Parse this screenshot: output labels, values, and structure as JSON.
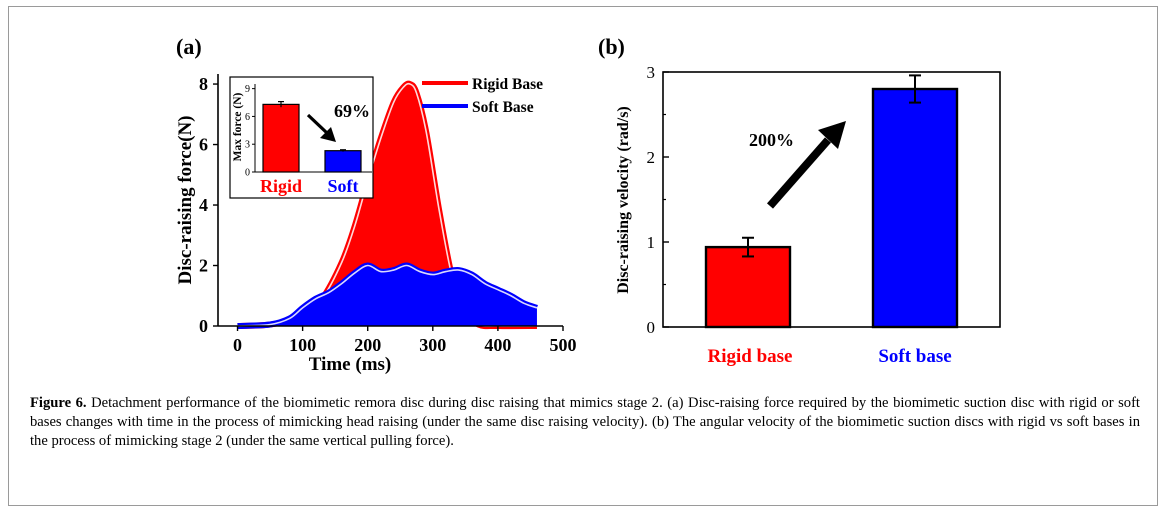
{
  "caption": {
    "label": "Figure 6.",
    "text": "Detachment performance of the biomimetic remora disc during disc raising that mimics stage 2. (a) Disc-raising force required by the biomimetic suction disc with rigid or soft bases changes with time in the process of mimicking head raising (under the same disc raising velocity). (b) The angular velocity of the biomimetic suction discs with rigid vs soft bases in the process of mimicking stage 2 (under the same vertical pulling force)."
  },
  "colors": {
    "rigid": "#ff0000",
    "soft": "#0000ff"
  },
  "chart_data": [
    {
      "panel": "(a)",
      "type": "area",
      "xlabel": "Time (ms)",
      "ylabel": "Disc-raising force(N)",
      "xlim": [
        -30,
        500
      ],
      "ylim": [
        0,
        8.2
      ],
      "xticks": [
        "0",
        "100",
        "200",
        "300",
        "400",
        "500"
      ],
      "yticks": [
        "0",
        "2",
        "4",
        "6",
        "8"
      ],
      "legend_position": "top-right",
      "series": [
        {
          "name": "Rigid Base",
          "color": "#ff0000",
          "x": [
            0,
            50,
            100,
            130,
            160,
            180,
            200,
            220,
            240,
            255,
            265,
            275,
            290,
            310,
            330,
            350,
            370,
            400,
            460
          ],
          "y": [
            0,
            0.05,
            0.3,
            0.9,
            2.1,
            3.3,
            4.8,
            6.2,
            7.4,
            7.9,
            8.0,
            7.7,
            6.4,
            3.8,
            1.6,
            0.5,
            0.05,
            0,
            0
          ]
        },
        {
          "name": "Soft Base",
          "color": "#0000ff",
          "x": [
            0,
            50,
            80,
            100,
            120,
            140,
            160,
            180,
            200,
            220,
            240,
            260,
            280,
            300,
            320,
            340,
            360,
            380,
            400,
            420,
            440,
            460
          ],
          "y": [
            0,
            0.05,
            0.25,
            0.6,
            0.9,
            1.1,
            1.4,
            1.75,
            2.0,
            1.8,
            1.85,
            2.0,
            1.8,
            1.7,
            1.8,
            1.85,
            1.7,
            1.4,
            1.2,
            1.0,
            0.75,
            0.6
          ]
        }
      ],
      "inset": {
        "type": "bar",
        "ylabel": "Max force (N)",
        "ylim": [
          0,
          9.5
        ],
        "yticks": [
          "0",
          "3",
          "6",
          "9"
        ],
        "categories": [
          "Rigid",
          "Soft"
        ],
        "values": [
          7.3,
          2.3
        ],
        "errors": [
          0.3,
          0.1
        ],
        "annotation": "69%"
      }
    },
    {
      "panel": "(b)",
      "type": "bar",
      "ylabel": "Disc-raising velocity (rad/s)",
      "ylim": [
        0,
        3
      ],
      "yticks": [
        "0",
        "1",
        "2",
        "3"
      ],
      "categories": [
        "Rigid base",
        "Soft base"
      ],
      "values": [
        0.94,
        2.8
      ],
      "errors": [
        0.11,
        0.16
      ],
      "annotation": "200%"
    }
  ]
}
